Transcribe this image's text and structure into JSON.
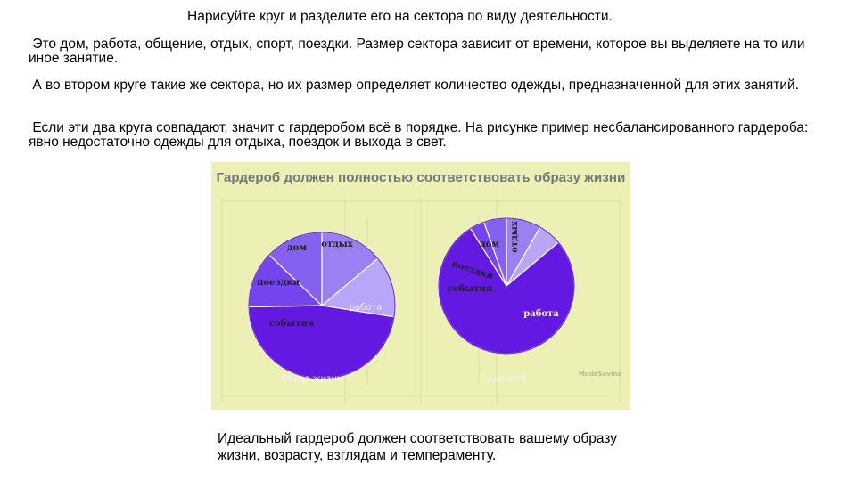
{
  "slide": {
    "title": "Нарисуйте круг и разделите его на сектора по виду деятельности.",
    "paragraph_1": " Это дом, работа, общение, отдых, спорт, поездки. Размер сектора зависит от времени, которое вы выделяете на то или иное занятие.",
    "paragraph_2": " А во втором круге такие же сектора, но их размер определяет количество одежды, предназначенной для этих занятий.",
    "paragraph_3": " Если эти два круга совпадают, значит с гардеробом всё в порядке. На рисунке пример несбалансированного гардероба: явно недостаточно одежды для отдыха, поездок и выхода в свет.",
    "caption": "Идеальный гардероб должен соответствовать вашему образу жизни, возрасту, взглядам и темпераменту."
  },
  "figure": {
    "title": "Гардероб должен полностью соответствовать образу жизни",
    "watermark": "ModaSavina"
  },
  "chart_data": [
    {
      "type": "pie",
      "title": "Образ жизни",
      "slices": [
        {
          "label": "дом",
          "value": 13.9,
          "color": "#9b80f2"
        },
        {
          "label": "отдых",
          "value": 13.6,
          "color": "#b8a6f8"
        },
        {
          "label": "работа",
          "value": 47.2,
          "color": "#6419e3"
        },
        {
          "label": "события",
          "value": 12.5,
          "color": "#7444ee"
        },
        {
          "label": "поездки",
          "value": 12.8,
          "color": "#8561f0"
        }
      ]
    },
    {
      "type": "pie",
      "title": "Гардероб",
      "slices": [
        {
          "label": "дом",
          "value": 8.3,
          "color": "#9b80f2"
        },
        {
          "label": "отдых",
          "value": 5.6,
          "color": "#b8a6f8"
        },
        {
          "label": "работа",
          "value": 77.2,
          "color": "#6419e3"
        },
        {
          "label": "события",
          "value": 3.5,
          "color": "#7444ee"
        },
        {
          "label": "поездки",
          "value": 5.4,
          "color": "#8561f0"
        }
      ]
    }
  ]
}
